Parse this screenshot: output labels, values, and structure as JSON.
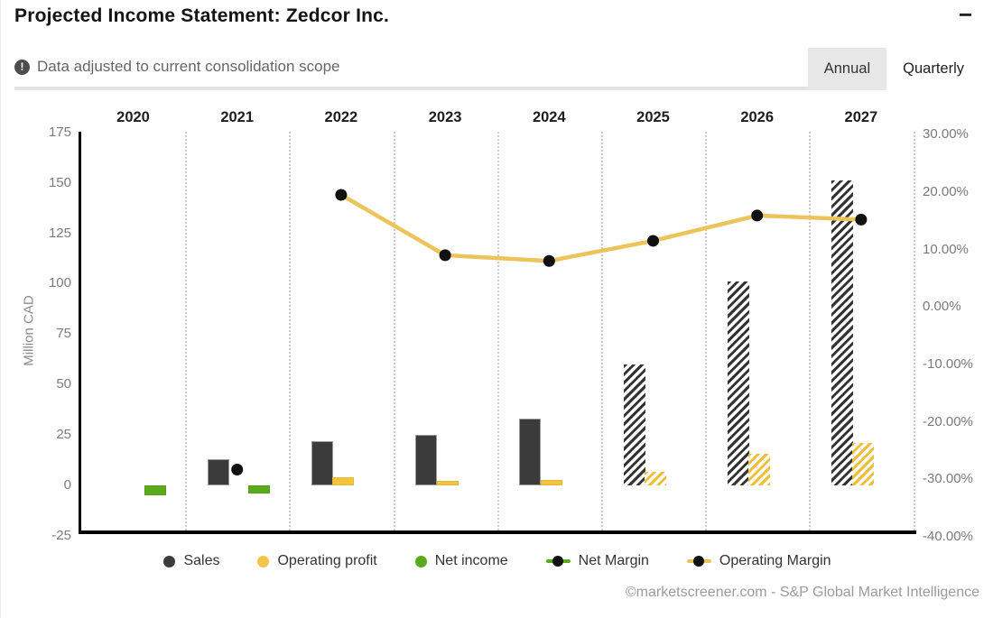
{
  "header": {
    "title": "Projected Income Statement: Zedcor Inc.",
    "collapse_label": "−",
    "note": "Data adjusted to current consolidation scope",
    "tabs": [
      {
        "label": "Annual",
        "selected": true
      },
      {
        "label": "Quarterly",
        "selected": false
      }
    ]
  },
  "chart_data": {
    "type": "bar",
    "subtype": "combo bar+line, dual axis",
    "categories": [
      "2020",
      "2021",
      "2022",
      "2023",
      "2024",
      "2025",
      "2026",
      "2027"
    ],
    "left_axis": {
      "label": "Million CAD",
      "ticks": [
        175,
        150,
        125,
        100,
        75,
        50,
        25,
        0,
        -25
      ],
      "range": [
        -25,
        175
      ]
    },
    "right_axis": {
      "ticks": [
        "30.00%",
        "20.00%",
        "10.00%",
        "0.00%",
        "-10.00%",
        "-20.00%",
        "-30.00%",
        "-40.00%"
      ],
      "range_pct": [
        -40,
        30
      ]
    },
    "series": [
      {
        "name": "Sales",
        "type": "bar",
        "axis": "left",
        "color": "#3b3b3b",
        "values": [
          null,
          13,
          22,
          25,
          33,
          60,
          101,
          151
        ]
      },
      {
        "name": "Operating profit",
        "type": "bar",
        "axis": "left",
        "color": "#f5c43f",
        "values": [
          null,
          null,
          4,
          2,
          2.5,
          6.5,
          15.5,
          21
        ]
      },
      {
        "name": "Net income",
        "type": "bar",
        "axis": "left",
        "color": "#5ba91d",
        "values": [
          -5,
          -4,
          null,
          null,
          null,
          null,
          null,
          null
        ]
      },
      {
        "name": "Net Margin",
        "type": "line",
        "axis": "right",
        "color": "#5ba91d",
        "marker_color": "#111111",
        "values_pct": [
          null,
          -28.3,
          null,
          null,
          null,
          null,
          null,
          null
        ]
      },
      {
        "name": "Operating Margin",
        "type": "line",
        "axis": "right",
        "color": "#edc35b",
        "marker_color": "#111111",
        "values_pct": [
          null,
          null,
          19.5,
          9.0,
          8.0,
          11.5,
          15.9,
          15.2
        ]
      }
    ],
    "estimates_start_index": 5,
    "grid": "vertical dotted separators between year columns",
    "legend_position": "bottom"
  },
  "legend": [
    {
      "label": "Sales",
      "marker": "dot",
      "color": "#3b3b3b"
    },
    {
      "label": "Operating profit",
      "marker": "dot",
      "color": "#f5c44a"
    },
    {
      "label": "Net income",
      "marker": "dot",
      "color": "#5ba91d"
    },
    {
      "label": "Net Margin",
      "marker": "line",
      "color": "#5ba91d"
    },
    {
      "label": "Operating Margin",
      "marker": "line",
      "color": "#edc35b"
    }
  ],
  "footer": {
    "credit": "©marketscreener.com - S&P Global Market Intelligence"
  }
}
